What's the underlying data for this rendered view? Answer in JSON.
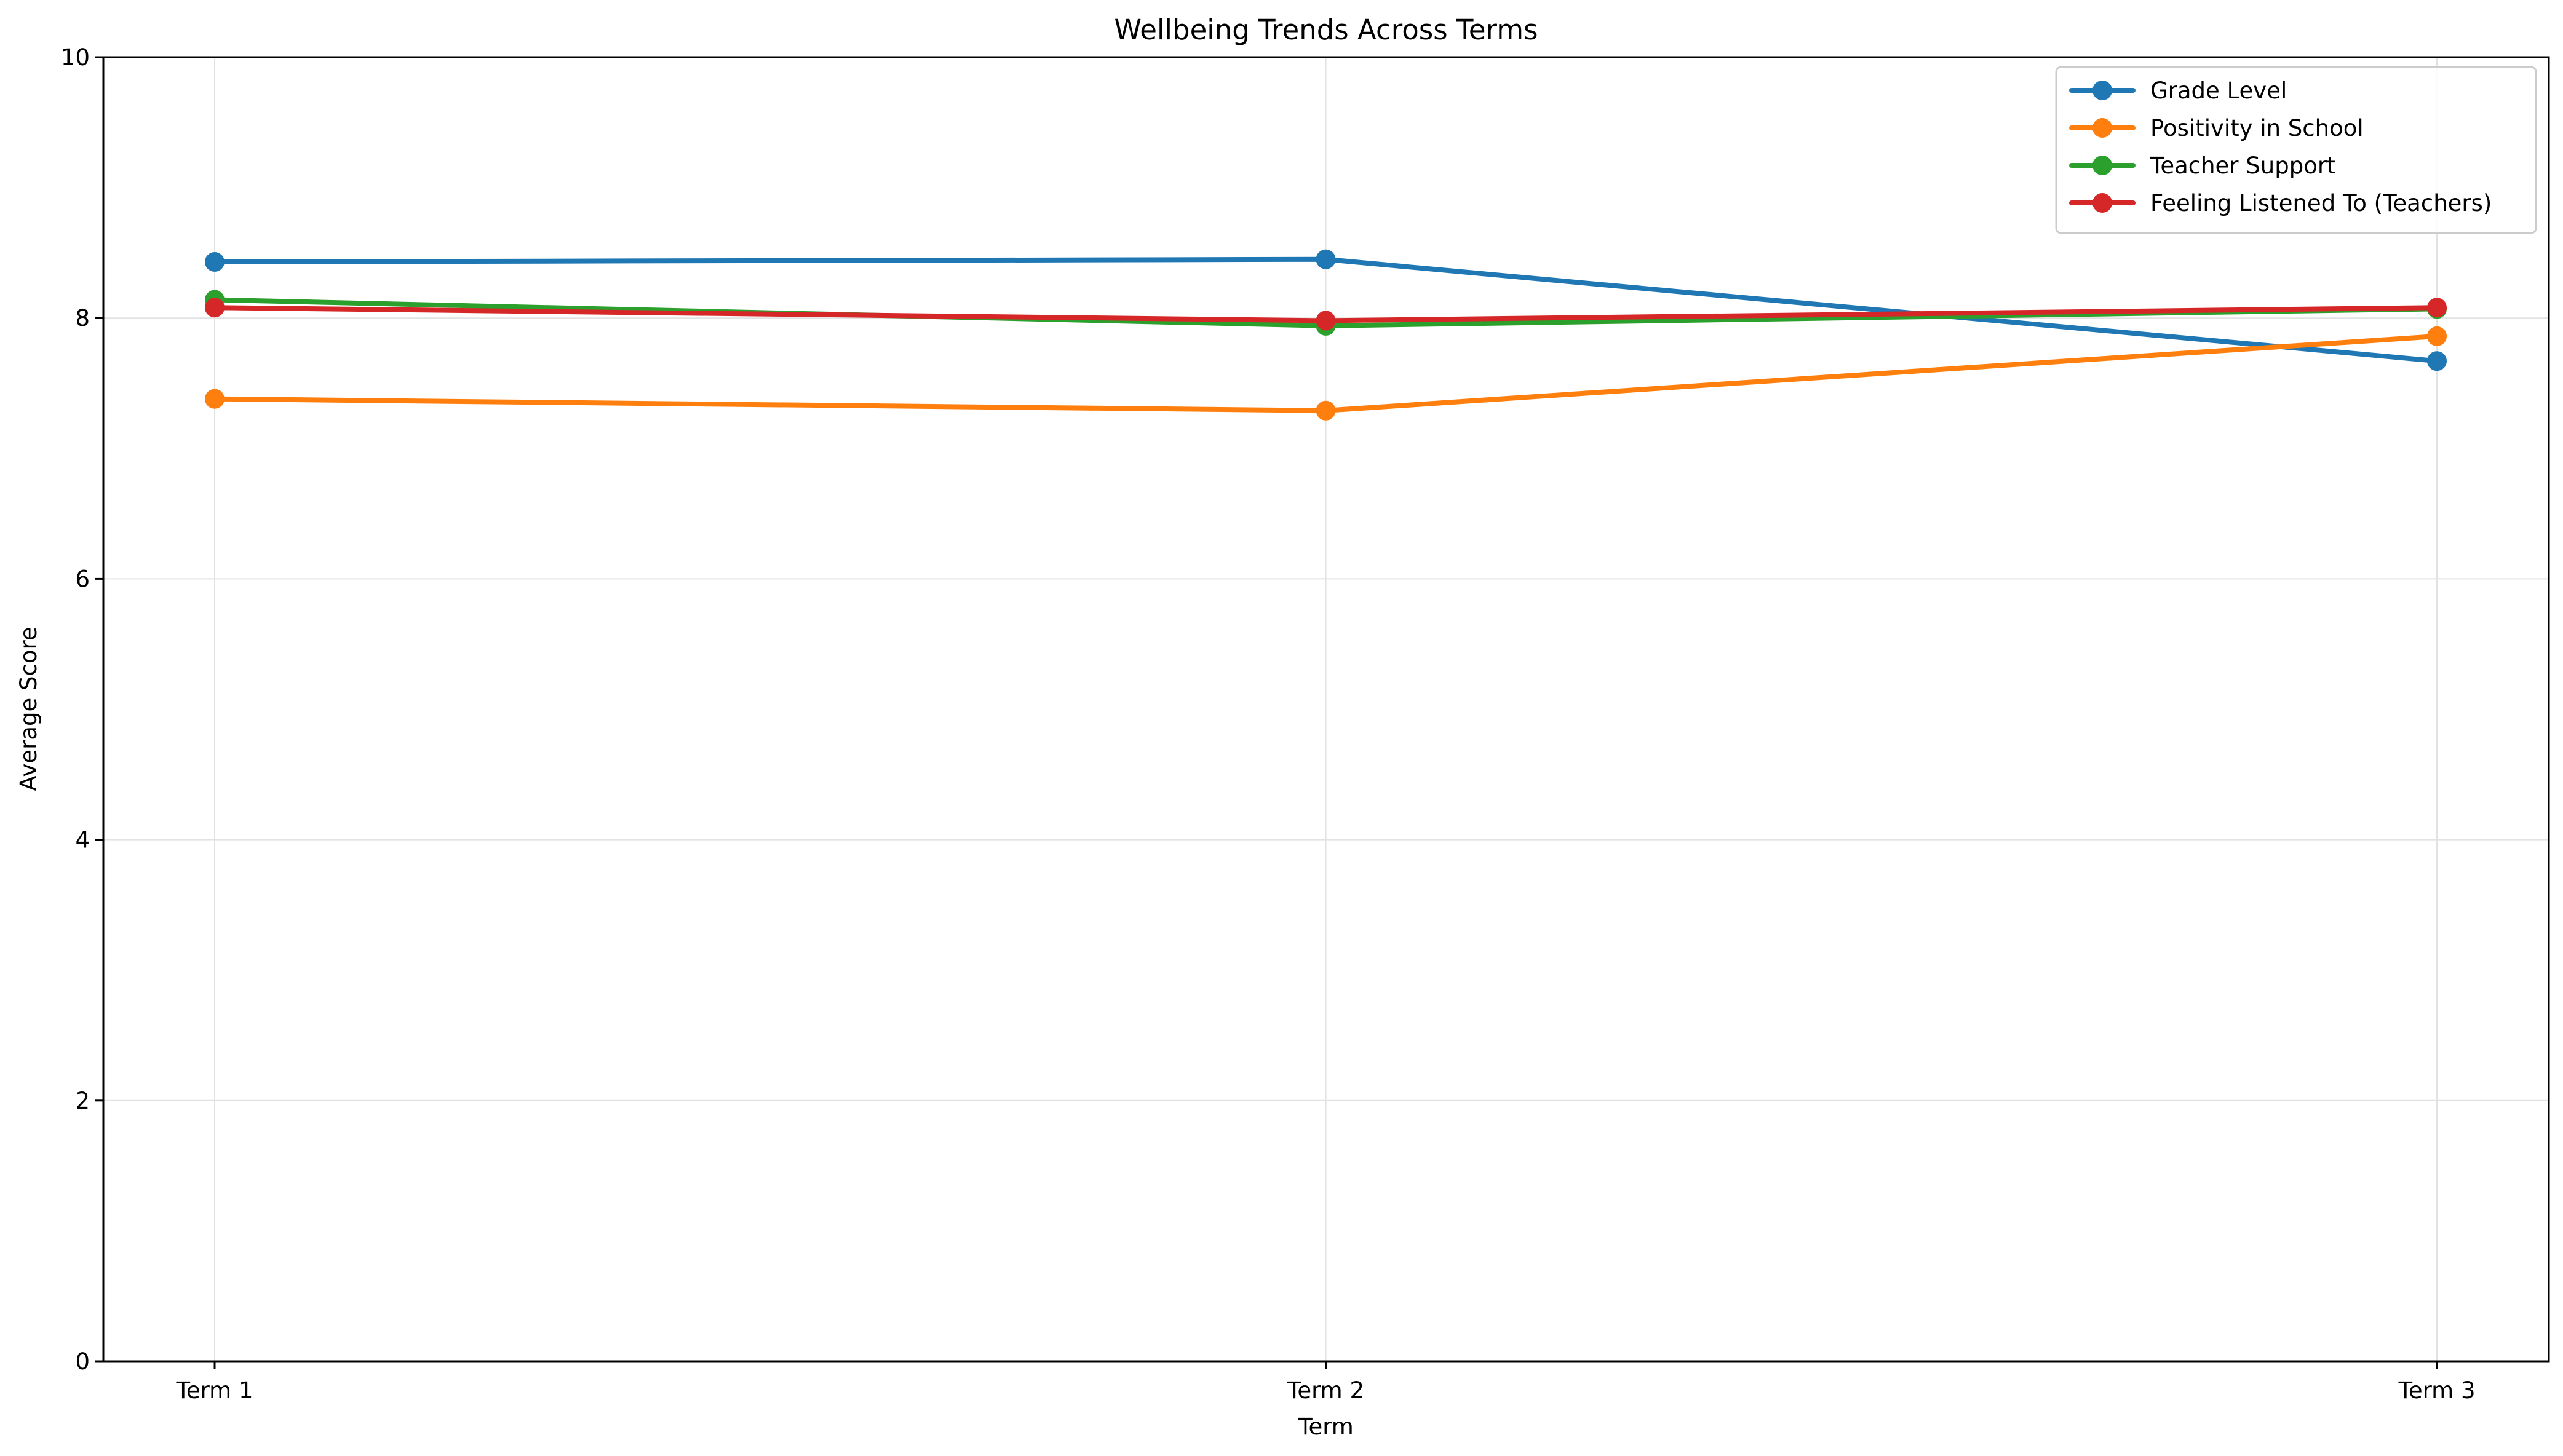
{
  "chart_data": {
    "type": "line",
    "title": "Wellbeing Trends Across Terms",
    "xlabel": "Term",
    "ylabel": "Average Score",
    "categories": [
      "Term 1",
      "Term 2",
      "Term 3"
    ],
    "ylim": [
      0,
      10
    ],
    "yticks": [
      0,
      2,
      4,
      6,
      8,
      10
    ],
    "grid": true,
    "legend_position": "top-right",
    "series": [
      {
        "name": "Grade Level",
        "color": "#1f77b4",
        "values": [
          8.43,
          8.45,
          7.67
        ]
      },
      {
        "name": "Positivity in School",
        "color": "#ff7f0e",
        "values": [
          7.38,
          7.29,
          7.86
        ]
      },
      {
        "name": "Teacher Support",
        "color": "#2ca02c",
        "values": [
          8.14,
          7.94,
          8.07
        ]
      },
      {
        "name": "Feeling Listened To (Teachers)",
        "color": "#d62728",
        "values": [
          8.08,
          7.98,
          8.08
        ]
      }
    ]
  }
}
